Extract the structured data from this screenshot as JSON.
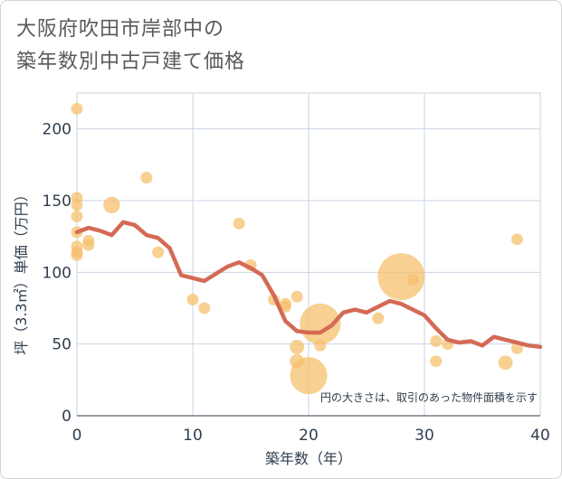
{
  "title_lines": [
    "大阪府吹田市岸部中の",
    "築年数別中古戸建て価格"
  ],
  "chart_data": {
    "type": "scatter",
    "title": "大阪府吹田市岸部中の築年数別中古戸建て価格",
    "xlabel": "築年数（年）",
    "ylabel": "坪（3.3㎡）単価（万円）",
    "xlim": [
      0,
      40
    ],
    "ylim": [
      0,
      225
    ],
    "xticks": [
      0,
      10,
      20,
      30,
      40
    ],
    "yticks": [
      0,
      50,
      100,
      150,
      200
    ],
    "grid": true,
    "annotation": "円の大きさは、取引のあった物件面積を示す",
    "colors": {
      "bubble": "#f5c06e",
      "line": "#d46a55"
    },
    "bubbles": [
      {
        "x": 0,
        "y": 214,
        "size": 1
      },
      {
        "x": 0,
        "y": 152,
        "size": 1
      },
      {
        "x": 0,
        "y": 147,
        "size": 1
      },
      {
        "x": 0,
        "y": 139,
        "size": 1
      },
      {
        "x": 0,
        "y": 128,
        "size": 1
      },
      {
        "x": 0,
        "y": 118,
        "size": 1
      },
      {
        "x": 0,
        "y": 114,
        "size": 1
      },
      {
        "x": 0,
        "y": 112,
        "size": 1
      },
      {
        "x": 1,
        "y": 122,
        "size": 1
      },
      {
        "x": 1,
        "y": 119,
        "size": 1
      },
      {
        "x": 3,
        "y": 147,
        "size": 2
      },
      {
        "x": 6,
        "y": 166,
        "size": 1
      },
      {
        "x": 7,
        "y": 114,
        "size": 1
      },
      {
        "x": 10,
        "y": 81,
        "size": 1
      },
      {
        "x": 11,
        "y": 75,
        "size": 1
      },
      {
        "x": 14,
        "y": 134,
        "size": 1
      },
      {
        "x": 15,
        "y": 105,
        "size": 1
      },
      {
        "x": 17,
        "y": 81,
        "size": 1
      },
      {
        "x": 18,
        "y": 78,
        "size": 1
      },
      {
        "x": 18,
        "y": 76,
        "size": 1
      },
      {
        "x": 19,
        "y": 83,
        "size": 1
      },
      {
        "x": 19,
        "y": 48,
        "size": 1.5
      },
      {
        "x": 19,
        "y": 38,
        "size": 1.5
      },
      {
        "x": 20,
        "y": 28,
        "size": 10
      },
      {
        "x": 21,
        "y": 64,
        "size": 12
      },
      {
        "x": 21,
        "y": 49,
        "size": 1
      },
      {
        "x": 26,
        "y": 68,
        "size": 1
      },
      {
        "x": 28,
        "y": 97,
        "size": 16
      },
      {
        "x": 29,
        "y": 95,
        "size": 1
      },
      {
        "x": 31,
        "y": 52,
        "size": 1
      },
      {
        "x": 31,
        "y": 38,
        "size": 1
      },
      {
        "x": 32,
        "y": 50,
        "size": 1
      },
      {
        "x": 37,
        "y": 37,
        "size": 1.5
      },
      {
        "x": 38,
        "y": 123,
        "size": 1
      },
      {
        "x": 38,
        "y": 47,
        "size": 1
      }
    ],
    "trend": {
      "x": [
        0,
        1,
        2,
        3,
        4,
        5,
        6,
        7,
        8,
        9,
        10,
        11,
        12,
        13,
        14,
        15,
        16,
        17,
        18,
        19,
        20,
        21,
        22,
        23,
        24,
        25,
        26,
        27,
        28,
        29,
        30,
        31,
        32,
        33,
        34,
        35,
        36,
        37,
        38,
        39,
        40
      ],
      "y": [
        128,
        131,
        129,
        126,
        135,
        133,
        126,
        124,
        117,
        98,
        96,
        94,
        99,
        104,
        107,
        103,
        98,
        84,
        66,
        59,
        58,
        58,
        63,
        72,
        74,
        72,
        76,
        80,
        78,
        74,
        70,
        61,
        53,
        51,
        52,
        49,
        55,
        53,
        51,
        49,
        48
      ]
    }
  }
}
